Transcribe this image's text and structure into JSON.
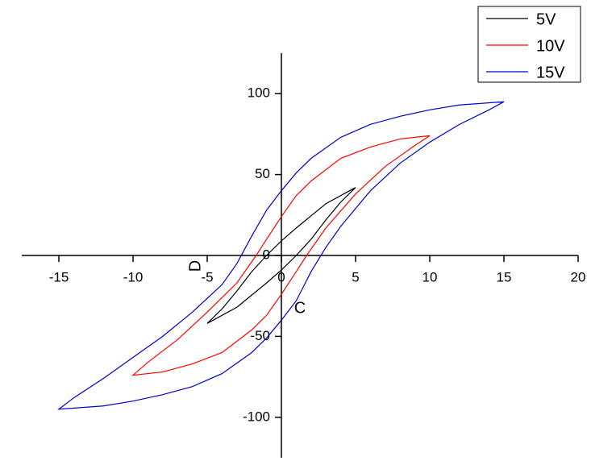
{
  "chart_data": {
    "type": "line",
    "x_label": "C",
    "y_label": "D",
    "xlim": [
      -17.5,
      20
    ],
    "ylim": [
      -125,
      125
    ],
    "xticks": [
      -15,
      -10,
      -5,
      0,
      5,
      10,
      15,
      20
    ],
    "yticks": [
      -100,
      -50,
      0,
      50,
      100
    ],
    "legend": "upper right",
    "series": [
      {
        "name": "5V",
        "color": "#000000",
        "x": [
          5,
          3,
          1,
          0,
          -1,
          -2,
          -3,
          -4,
          -5,
          -3,
          -1,
          0,
          1,
          2,
          3,
          4,
          5
        ],
        "values": [
          42,
          32,
          17,
          9,
          0,
          -10,
          -22,
          -33,
          -42,
          -32,
          -17,
          -9,
          0,
          10,
          22,
          33,
          42
        ]
      },
      {
        "name": "10V",
        "color": "#ff0000",
        "x": [
          10,
          8,
          6,
          4,
          2,
          1,
          0,
          -1,
          -1.7,
          -3,
          -5,
          -7,
          -9,
          -10,
          -8,
          -6,
          -4,
          -2,
          -1,
          0,
          1,
          1.7,
          3,
          5,
          7,
          9,
          10
        ],
        "values": [
          74,
          72,
          67,
          60,
          46,
          37,
          24,
          10,
          0,
          -17,
          -35,
          -52,
          -66,
          -74,
          -72,
          -67,
          -60,
          -46,
          -37,
          -24,
          -10,
          0,
          17,
          38,
          55,
          68,
          74
        ]
      },
      {
        "name": "15V",
        "color": "#0000cc",
        "x": [
          15,
          12,
          10,
          8,
          6,
          4,
          2,
          1,
          0,
          -1,
          -2,
          -3,
          -4,
          -6,
          -8,
          -10,
          -12,
          -14,
          -15,
          -12,
          -10,
          -8,
          -6,
          -4,
          -2,
          -1,
          0,
          1,
          2,
          3,
          4,
          6,
          8,
          10,
          12,
          14,
          15
        ],
        "values": [
          95,
          93,
          90,
          86,
          81,
          73,
          60,
          51,
          40,
          28,
          12,
          -5,
          -18,
          -35,
          -50,
          -63,
          -76,
          -88,
          -95,
          -93,
          -90,
          -86,
          -81,
          -73,
          -60,
          -51,
          -40,
          -28,
          -10,
          5,
          18,
          40,
          57,
          70,
          81,
          90,
          95
        ]
      }
    ]
  }
}
